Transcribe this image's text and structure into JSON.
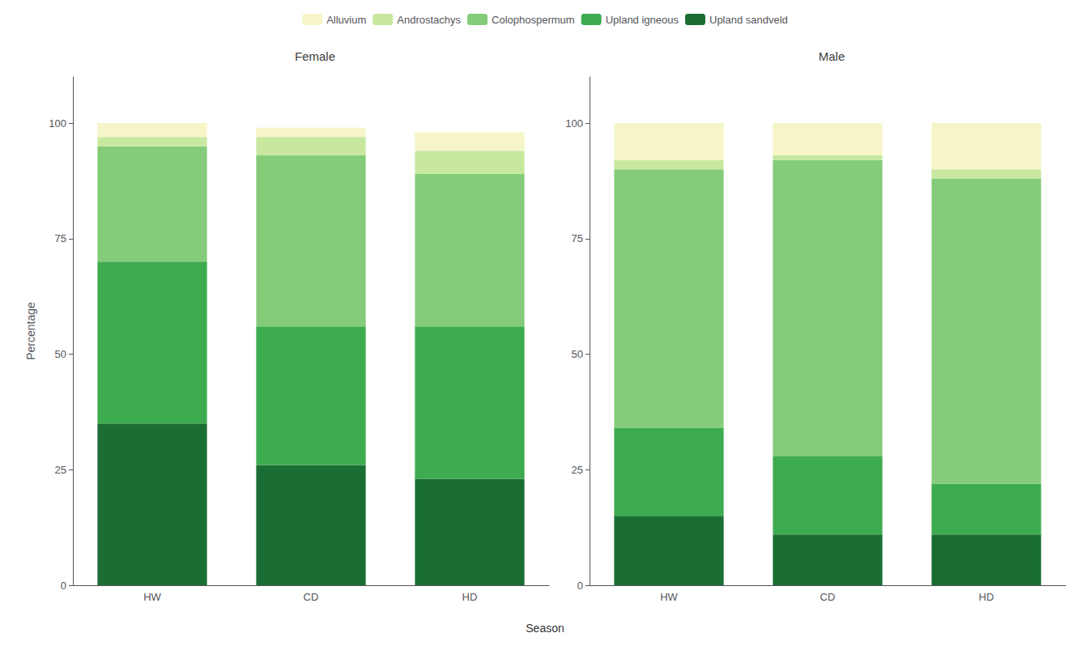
{
  "chart_data": [
    {
      "type": "bar",
      "title": "Female",
      "categories": [
        "HW",
        "CD",
        "HD"
      ],
      "xlabel": "Season",
      "ylabel": "Percentage",
      "series": [
        {
          "name": "Upland sandveld",
          "color": "#1a6e34",
          "values": [
            35,
            26,
            23
          ]
        },
        {
          "name": "Upland igneous",
          "color": "#3dab50",
          "values": [
            35,
            30,
            33
          ]
        },
        {
          "name": "Colophospermum",
          "color": "#85cc7a",
          "values": [
            25,
            37,
            33
          ]
        },
        {
          "name": "Androstachys",
          "color": "#c8e8a0",
          "values": [
            2,
            4,
            5
          ]
        },
        {
          "name": "Alluvium",
          "color": "#f5f5c8",
          "values": [
            3,
            2,
            4
          ]
        }
      ],
      "ylim": [
        0,
        110
      ],
      "yticks": [
        0,
        25,
        50,
        75,
        100
      ],
      "grid": false,
      "stacked": true,
      "legend": "top"
    },
    {
      "type": "bar",
      "title": "Male",
      "categories": [
        "HW",
        "CD",
        "HD"
      ],
      "series": [
        {
          "name": "Upland sandveld",
          "color": "#1a6e34",
          "values": [
            15,
            11,
            11
          ]
        },
        {
          "name": "Upland igneous",
          "color": "#3dab50",
          "values": [
            19,
            17,
            11
          ]
        },
        {
          "name": "Colophospermum",
          "color": "#85cc7a",
          "values": [
            56,
            64,
            66
          ]
        },
        {
          "name": "Androstachys",
          "color": "#c8e8a0",
          "values": [
            2,
            1,
            2
          ]
        },
        {
          "name": "Alluvium",
          "color": "#f5f5c8",
          "values": [
            8,
            7,
            10
          ]
        }
      ],
      "ylim": [
        0,
        110
      ],
      "yticks": [
        0,
        25,
        50,
        75,
        100
      ],
      "grid": false,
      "stacked": true
    }
  ]
}
